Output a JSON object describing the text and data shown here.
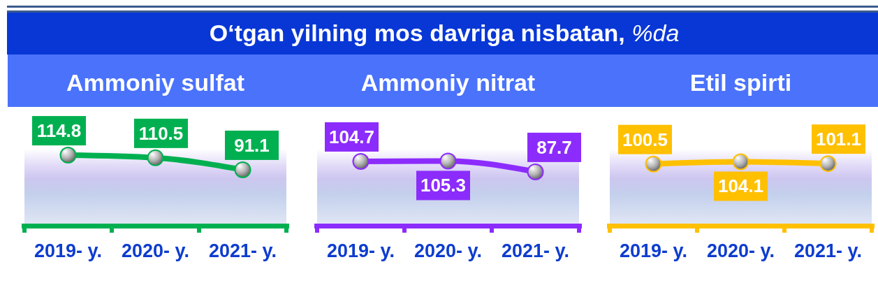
{
  "chart_data": [
    {
      "type": "other",
      "title": "O‘tgan yilning mos davriga nisbatan, %da"
    },
    {
      "type": "line",
      "title": "Ammoniy sulfat",
      "categories": [
        "2019- y.",
        "2020- y.",
        "2021- y."
      ],
      "values": [
        114.8,
        110.5,
        91.1
      ],
      "color": "#00b050",
      "marker": "circle",
      "data_labels": true,
      "tick_labels": "x"
    },
    {
      "type": "line",
      "title": "Ammoniy nitrat",
      "categories": [
        "2019- y.",
        "2020- y.",
        "2021- y."
      ],
      "values": [
        104.7,
        105.3,
        87.7
      ],
      "color": "#8c2cfc",
      "marker": "circle",
      "data_labels": true,
      "tick_labels": "x"
    },
    {
      "type": "line",
      "title": "Etil spirti",
      "categories": [
        "2019- y.",
        "2020- y.",
        "2021- y."
      ],
      "values": [
        100.5,
        104.1,
        101.1
      ],
      "color": "#ffc000",
      "marker": "circle",
      "data_labels": true,
      "tick_labels": "x"
    }
  ]
}
